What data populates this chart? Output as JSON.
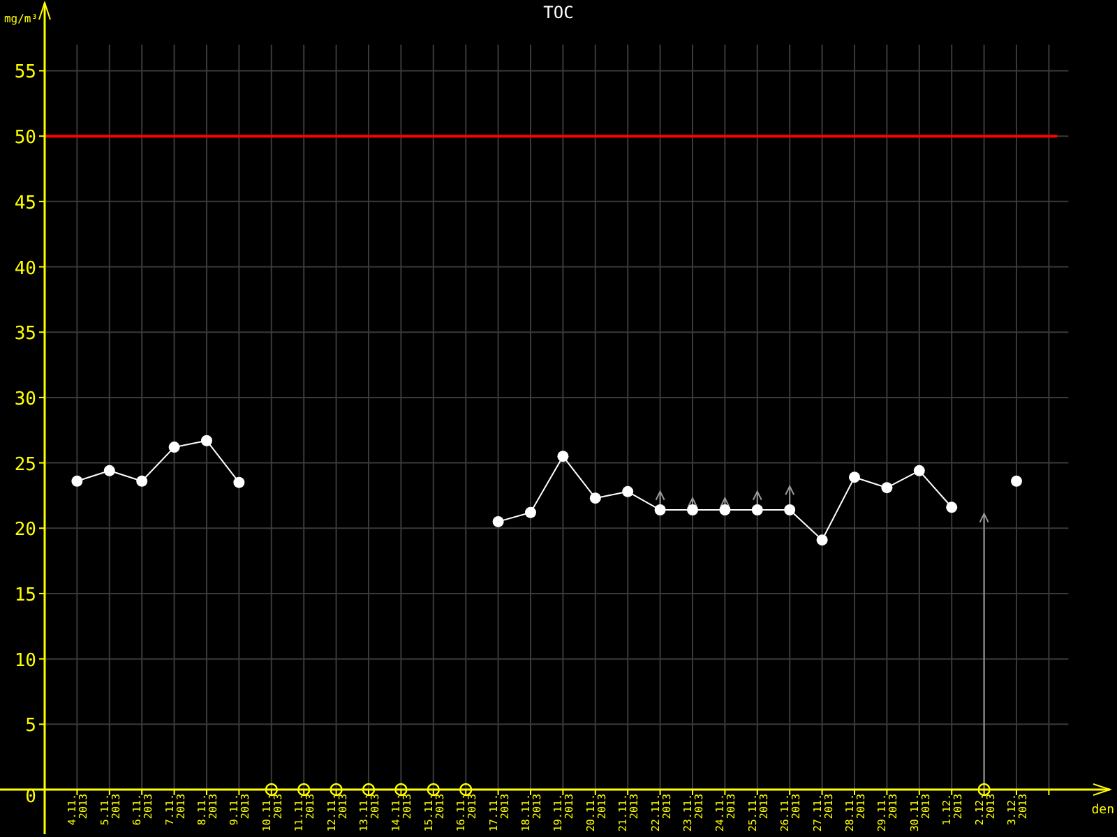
{
  "chart_data": {
    "type": "line",
    "title": "TOC",
    "xlabel": "den",
    "ylabel": "mg/m³",
    "categories": [
      "4.11. 2013",
      "5.11. 2013",
      "6.11. 2013",
      "7.11. 2013",
      "8.11. 2013",
      "9.11. 2013",
      "10.11. 2013",
      "11.11. 2013",
      "12.11. 2013",
      "13.11. 2013",
      "14.11. 2013",
      "15.11. 2013",
      "16.11. 2013",
      "17.11. 2013",
      "18.11. 2013",
      "19.11. 2013",
      "20.11. 2013",
      "21.11. 2013",
      "22.11. 2013",
      "23.11. 2013",
      "24.11. 2013",
      "25.11. 2013",
      "26.11. 2013",
      "27.11. 2013",
      "28.11. 2013",
      "29.11. 2013",
      "30.11. 2013",
      "1.12. 2013",
      "2.12. 2013",
      "3.12. 2013",
      null
    ],
    "series": [
      {
        "color": "#ffffff",
        "marker": "circle",
        "values": [
          23.6,
          24.4,
          23.6,
          26.2,
          26.7,
          23.5,
          null,
          null,
          null,
          null,
          null,
          null,
          null,
          20.5,
          21.2,
          25.5,
          22.3,
          22.8,
          21.4,
          21.4,
          21.4,
          21.4,
          21.4,
          19.1,
          23.9,
          23.1,
          24.4,
          21.6,
          null,
          23.6,
          null
        ],
        "errors": [
          null,
          null,
          null,
          null,
          null,
          null,
          null,
          null,
          null,
          null,
          null,
          null,
          null,
          null,
          null,
          null,
          null,
          null,
          [
            21.4,
            22.8
          ],
          [
            21.4,
            22.3
          ],
          [
            21.4,
            22.3
          ],
          [
            21.4,
            22.8
          ],
          [
            21.4,
            23.2
          ],
          null,
          null,
          null,
          null,
          null,
          null,
          null,
          null
        ]
      },
      {
        "type": "scatter",
        "color": "#ffff00",
        "marker": "circle",
        "values": [
          null,
          null,
          null,
          null,
          null,
          null,
          0,
          0,
          0,
          0,
          0,
          0,
          0,
          null,
          null,
          null,
          null,
          null,
          null,
          null,
          null,
          null,
          null,
          null,
          null,
          null,
          null,
          null,
          0,
          null,
          null
        ],
        "errors": [
          null,
          null,
          null,
          null,
          null,
          null,
          null,
          null,
          null,
          null,
          null,
          null,
          null,
          null,
          null,
          null,
          null,
          null,
          null,
          null,
          null,
          null,
          null,
          null,
          null,
          null,
          null,
          null,
          [
            0,
            21.1
          ],
          null,
          null
        ]
      }
    ],
    "ylim": [
      0,
      57
    ],
    "yticks": [
      0,
      5,
      10,
      15,
      20,
      25,
      30,
      35,
      40,
      45,
      50,
      55
    ],
    "grid": true,
    "ref_lines": [
      {
        "axis": "y",
        "value": 50,
        "color": "#ff0000"
      }
    ]
  }
}
